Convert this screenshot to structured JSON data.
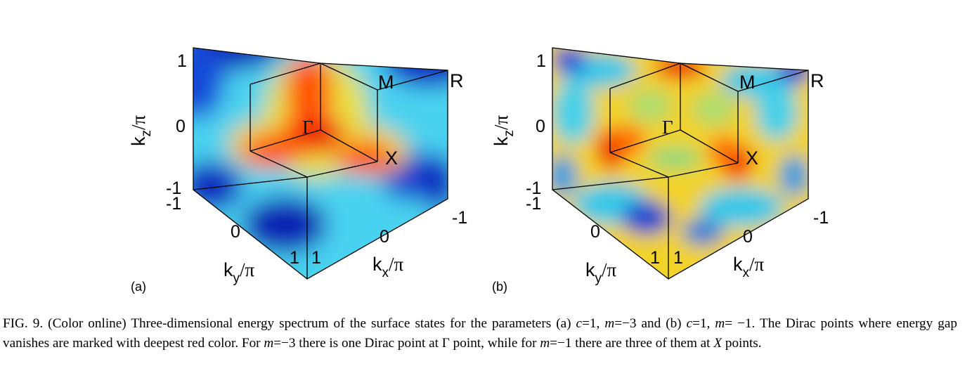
{
  "panels": [
    {
      "id": "a",
      "tag": "(a)",
      "kz_tick_top": "1",
      "kz_tick_mid": "0",
      "kz_tick_bottom": "-1",
      "ky_tick_left": "-1",
      "ky_tick_mid": "0",
      "ky_tick_right": "1",
      "kx_tick_left": "1",
      "kx_tick_mid": "0",
      "kx_tick_right": "-1",
      "kz_label": "k",
      "kz_sub": "z",
      "ky_label": "k",
      "ky_sub": "y",
      "kx_label": "k",
      "kx_sub": "x",
      "pi_suffix": "/π",
      "point_gamma": "Γ",
      "point_m": "M",
      "point_r": "R",
      "point_x": "X"
    },
    {
      "id": "b",
      "tag": "(b)",
      "kz_tick_top": "1",
      "kz_tick_mid": "0",
      "kz_tick_bottom": "-1",
      "ky_tick_left": "-1",
      "ky_tick_mid": "0",
      "ky_tick_right": "1",
      "kx_tick_left": "1",
      "kx_tick_mid": "0",
      "kx_tick_right": "-1",
      "kz_label": "k",
      "kz_sub": "z",
      "ky_label": "k",
      "ky_sub": "y",
      "kx_label": "k",
      "kx_sub": "x",
      "pi_suffix": "/π",
      "point_gamma": "Γ",
      "point_m": "M",
      "point_r": "R",
      "point_x": "X"
    }
  ],
  "caption": {
    "lead": "FIG. 9. (Color online) Three-dimensional energy spectrum of the surface states for the parameters (a) ",
    "c1": "c",
    "eq1": "=1, ",
    "m1": "m",
    "eq2": "=−3 and (b) ",
    "c2": "c",
    "eq3": "=1, ",
    "m2": "m",
    "eq4": "= −1. The Dirac points where energy gap vanishes are marked with deepest red color. For ",
    "m3": "m",
    "eq5": "=−3 there is one Dirac point at Γ point, while for ",
    "m4": "m",
    "eq6": "=−1 there are three of them at ",
    "x_it": "X",
    "tail": " points."
  }
}
